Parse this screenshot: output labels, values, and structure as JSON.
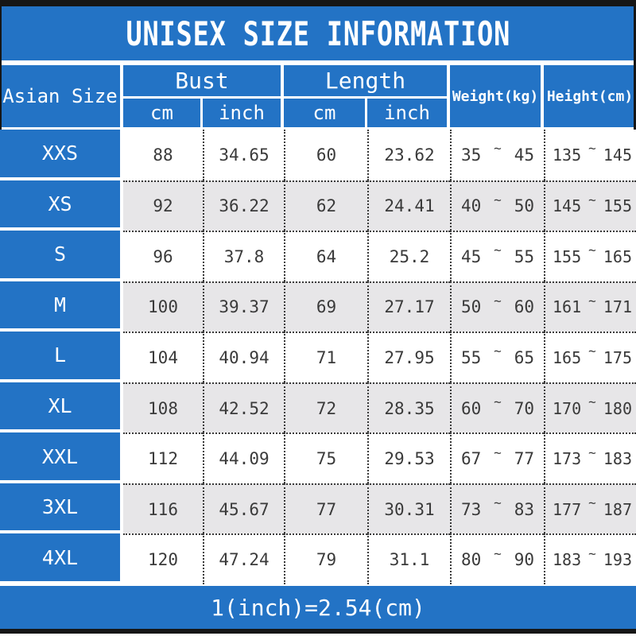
{
  "title": "UNISEX SIZE INFORMATION",
  "footer": {
    "note": "1(inch)=2.54(cm)"
  },
  "colors": {
    "blue": "#2373c5",
    "alt_row": "#e7e6e8",
    "frame": "#161616"
  },
  "table": {
    "tilde": "~",
    "headers": {
      "asian_size": "Asian Size",
      "bust": "Bust",
      "length": "Length",
      "weight": "Weight(kg)",
      "height": "Height(cm)",
      "bust_cm": "cm",
      "bust_inch": "inch",
      "length_cm": "cm",
      "length_inch": "inch"
    },
    "rows": [
      {
        "size": "XXS",
        "bust_cm": "88",
        "bust_inch": "34.65",
        "length_cm": "60",
        "length_inch": "23.62",
        "weight_min": "35",
        "weight_max": "45",
        "height_min": "135",
        "height_max": "145"
      },
      {
        "size": "XS",
        "bust_cm": "92",
        "bust_inch": "36.22",
        "length_cm": "62",
        "length_inch": "24.41",
        "weight_min": "40",
        "weight_max": "50",
        "height_min": "145",
        "height_max": "155"
      },
      {
        "size": "S",
        "bust_cm": "96",
        "bust_inch": "37.8",
        "length_cm": "64",
        "length_inch": "25.2",
        "weight_min": "45",
        "weight_max": "55",
        "height_min": "155",
        "height_max": "165"
      },
      {
        "size": "M",
        "bust_cm": "100",
        "bust_inch": "39.37",
        "length_cm": "69",
        "length_inch": "27.17",
        "weight_min": "50",
        "weight_max": "60",
        "height_min": "161",
        "height_max": "171"
      },
      {
        "size": "L",
        "bust_cm": "104",
        "bust_inch": "40.94",
        "length_cm": "71",
        "length_inch": "27.95",
        "weight_min": "55",
        "weight_max": "65",
        "height_min": "165",
        "height_max": "175"
      },
      {
        "size": "XL",
        "bust_cm": "108",
        "bust_inch": "42.52",
        "length_cm": "72",
        "length_inch": "28.35",
        "weight_min": "60",
        "weight_max": "70",
        "height_min": "170",
        "height_max": "180"
      },
      {
        "size": "XXL",
        "bust_cm": "112",
        "bust_inch": "44.09",
        "length_cm": "75",
        "length_inch": "29.53",
        "weight_min": "67",
        "weight_max": "77",
        "height_min": "173",
        "height_max": "183"
      },
      {
        "size": "3XL",
        "bust_cm": "116",
        "bust_inch": "45.67",
        "length_cm": "77",
        "length_inch": "30.31",
        "weight_min": "73",
        "weight_max": "83",
        "height_min": "177",
        "height_max": "187"
      },
      {
        "size": "4XL",
        "bust_cm": "120",
        "bust_inch": "47.24",
        "length_cm": "79",
        "length_inch": "31.1",
        "weight_min": "80",
        "weight_max": "90",
        "height_min": "183",
        "height_max": "193"
      }
    ]
  }
}
